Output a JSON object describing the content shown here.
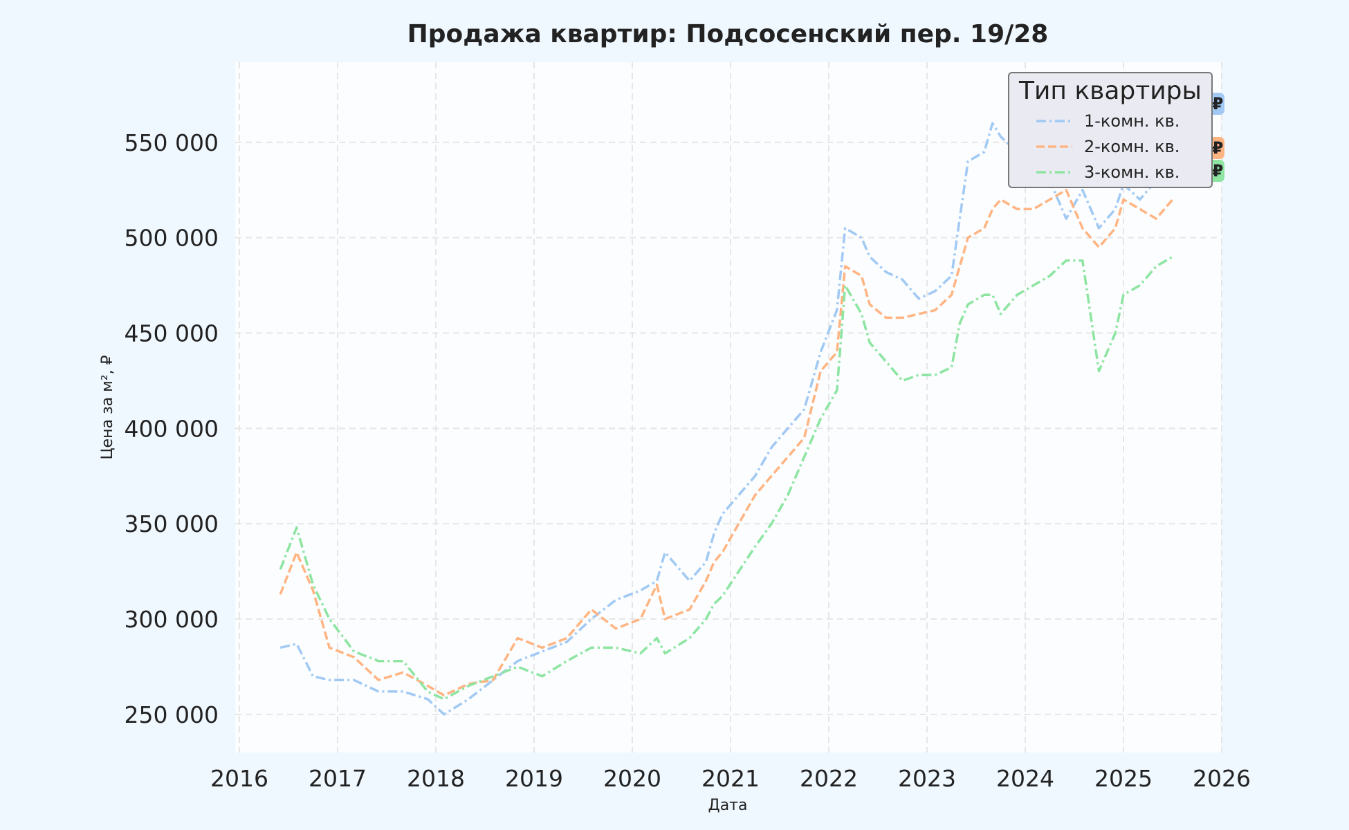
{
  "chart_data": {
    "type": "line",
    "title": "Продажа квартир: Подсосенский пер. 19/28",
    "xlabel": "Дата",
    "ylabel": "Цена за м², ₽",
    "xlim": [
      2016,
      2026
    ],
    "ylim": [
      230000,
      592000
    ],
    "x_ticks": [
      "2016",
      "2017",
      "2018",
      "2019",
      "2020",
      "2021",
      "2022",
      "2023",
      "2024",
      "2025",
      "2026"
    ],
    "y_ticks": [
      {
        "value": 250000,
        "label": "250 000"
      },
      {
        "value": 300000,
        "label": "300 000"
      },
      {
        "value": 350000,
        "label": "350 000"
      },
      {
        "value": 400000,
        "label": "400 000"
      },
      {
        "value": 450000,
        "label": "450 000"
      },
      {
        "value": 500000,
        "label": "500 000"
      },
      {
        "value": 550000,
        "label": "550 000"
      }
    ],
    "grid": true,
    "legend": {
      "title": "Тип квартиры",
      "placement": "top-right"
    },
    "series": [
      {
        "name": "1-комн. кв.",
        "color": "#a1c9f4",
        "dash": "dashdot",
        "x": [
          "2016-06",
          "2016-08",
          "2016-10",
          "2016-12",
          "2017-03",
          "2017-06",
          "2017-09",
          "2017-12",
          "2018-02",
          "2018-05",
          "2018-08",
          "2018-11",
          "2019-02",
          "2019-05",
          "2019-08",
          "2019-11",
          "2020-02",
          "2020-04",
          "2020-05",
          "2020-08",
          "2020-10",
          "2020-11",
          "2020-12",
          "2021-02",
          "2021-04",
          "2021-06",
          "2021-08",
          "2021-10",
          "2021-12",
          "2022-02",
          "2022-03",
          "2022-05",
          "2022-06",
          "2022-08",
          "2022-10",
          "2022-12",
          "2023-02",
          "2023-04",
          "2023-05",
          "2023-06",
          "2023-08",
          "2023-09",
          "2023-10",
          "2023-12",
          "2024-02",
          "2024-04",
          "2024-06",
          "2024-08",
          "2024-10",
          "2024-12",
          "2025-01",
          "2025-03",
          "2025-05",
          "2025-07"
        ],
        "y": [
          285000,
          287000,
          270000,
          268000,
          268000,
          262000,
          262000,
          258000,
          250000,
          258000,
          268000,
          278000,
          283000,
          288000,
          300000,
          310000,
          315000,
          320000,
          335000,
          320000,
          330000,
          345000,
          355000,
          365000,
          375000,
          390000,
          400000,
          410000,
          440000,
          462000,
          505000,
          500000,
          490000,
          482000,
          478000,
          468000,
          472000,
          480000,
          510000,
          540000,
          545000,
          560000,
          553000,
          545000,
          545000,
          530000,
          510000,
          525000,
          505000,
          515000,
          528000,
          520000,
          530000,
          540000
        ]
      },
      {
        "name": "2-комн. кв.",
        "color": "#ffb482",
        "dash": "dashed",
        "x": [
          "2016-06",
          "2016-08",
          "2016-10",
          "2016-12",
          "2017-03",
          "2017-06",
          "2017-09",
          "2017-12",
          "2018-02",
          "2018-05",
          "2018-08",
          "2018-11",
          "2019-02",
          "2019-05",
          "2019-08",
          "2019-11",
          "2020-02",
          "2020-04",
          "2020-05",
          "2020-08",
          "2020-10",
          "2020-11",
          "2020-12",
          "2021-02",
          "2021-04",
          "2021-06",
          "2021-08",
          "2021-10",
          "2021-12",
          "2022-02",
          "2022-03",
          "2022-05",
          "2022-06",
          "2022-08",
          "2022-10",
          "2022-12",
          "2023-02",
          "2023-04",
          "2023-05",
          "2023-06",
          "2023-08",
          "2023-09",
          "2023-10",
          "2023-12",
          "2024-02",
          "2024-04",
          "2024-06",
          "2024-08",
          "2024-10",
          "2024-12",
          "2025-01",
          "2025-03",
          "2025-05",
          "2025-07"
        ],
        "y": [
          313000,
          335000,
          315000,
          285000,
          280000,
          268000,
          272000,
          265000,
          260000,
          266000,
          268000,
          290000,
          285000,
          290000,
          305000,
          295000,
          300000,
          318000,
          300000,
          305000,
          320000,
          330000,
          335000,
          350000,
          365000,
          375000,
          385000,
          395000,
          430000,
          440000,
          485000,
          480000,
          465000,
          458000,
          458000,
          460000,
          462000,
          470000,
          485000,
          500000,
          505000,
          515000,
          520000,
          515000,
          515000,
          520000,
          525000,
          505000,
          495000,
          505000,
          520000,
          515000,
          510000,
          520000
        ]
      },
      {
        "name": "3-комн. кв.",
        "color": "#8de5a1",
        "dash": "dashdot",
        "x": [
          "2016-06",
          "2016-08",
          "2016-10",
          "2016-12",
          "2017-03",
          "2017-06",
          "2017-09",
          "2017-12",
          "2018-02",
          "2018-05",
          "2018-08",
          "2018-11",
          "2019-02",
          "2019-05",
          "2019-08",
          "2019-11",
          "2020-02",
          "2020-04",
          "2020-05",
          "2020-08",
          "2020-10",
          "2020-11",
          "2020-12",
          "2021-02",
          "2021-04",
          "2021-06",
          "2021-08",
          "2021-10",
          "2021-12",
          "2022-02",
          "2022-03",
          "2022-05",
          "2022-06",
          "2022-08",
          "2022-10",
          "2022-12",
          "2023-02",
          "2023-04",
          "2023-05",
          "2023-06",
          "2023-08",
          "2023-09",
          "2023-10",
          "2023-12",
          "2024-02",
          "2024-04",
          "2024-06",
          "2024-08",
          "2024-10",
          "2024-12",
          "2025-01",
          "2025-03",
          "2025-05",
          "2025-07"
        ],
        "y": [
          326000,
          348000,
          318000,
          300000,
          283000,
          278000,
          278000,
          262000,
          258000,
          265000,
          270000,
          275000,
          270000,
          278000,
          285000,
          285000,
          282000,
          290000,
          282000,
          290000,
          300000,
          308000,
          312000,
          325000,
          338000,
          350000,
          365000,
          385000,
          405000,
          420000,
          475000,
          460000,
          445000,
          435000,
          425000,
          428000,
          428000,
          432000,
          455000,
          465000,
          470000,
          470000,
          460000,
          470000,
          475000,
          480000,
          488000,
          488000,
          430000,
          450000,
          470000,
          475000,
          485000,
          490000
        ]
      }
    ],
    "badges": [
      {
        "color": "#a1c9f4",
        "glyph": "₽"
      },
      {
        "color": "#ffb482",
        "glyph": "₽"
      },
      {
        "color": "#8de5a1",
        "glyph": "₽"
      }
    ]
  }
}
